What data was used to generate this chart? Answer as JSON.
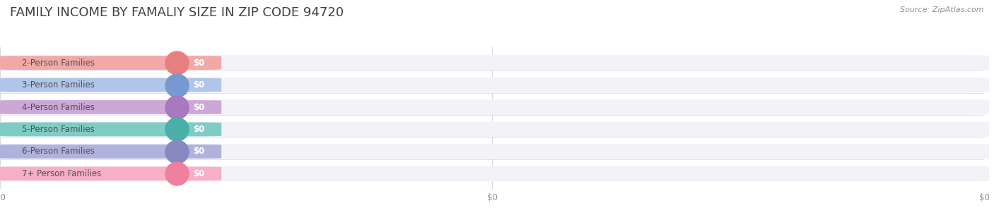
{
  "title": "FAMILY INCOME BY FAMALIY SIZE IN ZIP CODE 94720",
  "source_text": "Source: ZipAtlas.com",
  "categories": [
    "2-Person Families",
    "3-Person Families",
    "4-Person Families",
    "5-Person Families",
    "6-Person Families",
    "7+ Person Families"
  ],
  "values": [
    0,
    0,
    0,
    0,
    0,
    0
  ],
  "bar_colors": [
    "#f4a0a0",
    "#a8c0e8",
    "#c8a0d4",
    "#72c8c0",
    "#a8acd8",
    "#f8a8c0"
  ],
  "dot_colors": [
    "#e88080",
    "#7898d0",
    "#a878c0",
    "#48b0a8",
    "#8888c0",
    "#f080a0"
  ],
  "bar_bg_color": "#f2f2f7",
  "label_color": "#505050",
  "value_label_color": "#ffffff",
  "title_color": "#404040",
  "tick_label_color": "#909090",
  "source_color": "#909090",
  "background_color": "#ffffff",
  "title_fontsize": 13,
  "label_fontsize": 8.5,
  "value_fontsize": 8.5,
  "tick_fontsize": 8.5,
  "source_fontsize": 8
}
